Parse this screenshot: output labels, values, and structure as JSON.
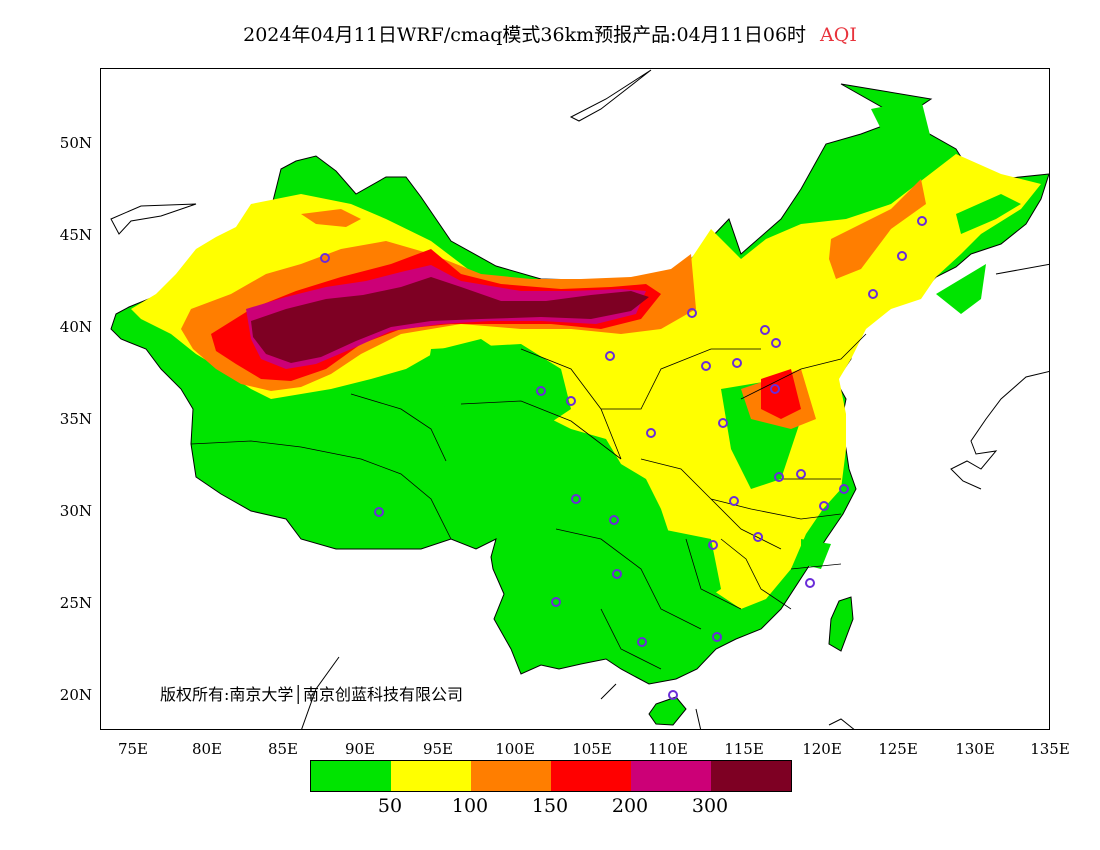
{
  "title": {
    "text": "2024年04月11日WRF/cmaq模式36km预报产品:04月11日06时",
    "variable": "AQI"
  },
  "axes": {
    "lat_ticks": [
      "50N",
      "45N",
      "40N",
      "35N",
      "30N",
      "25N",
      "20N"
    ],
    "lon_ticks": [
      "75E",
      "80E",
      "85E",
      "90E",
      "95E",
      "100E",
      "105E",
      "110E",
      "115E",
      "120E",
      "125E",
      "130E",
      "135E"
    ]
  },
  "copyright": "版权所有:南京大学│南京创蓝科技有限公司",
  "legend": {
    "colors": [
      "#00e400",
      "#ffff00",
      "#ff7e00",
      "#ff0000",
      "#cc0077",
      "#7e0023"
    ],
    "ticks": [
      "50",
      "100",
      "150",
      "200",
      "300"
    ]
  },
  "colors": {
    "good": "#00e400",
    "moderate": "#ffff00",
    "usg": "#ff7e00",
    "unhealthy": "#ff0000",
    "very_unhealthy": "#cc0077",
    "hazardous": "#7e0023",
    "station_marker": "#6a2cd8"
  }
}
